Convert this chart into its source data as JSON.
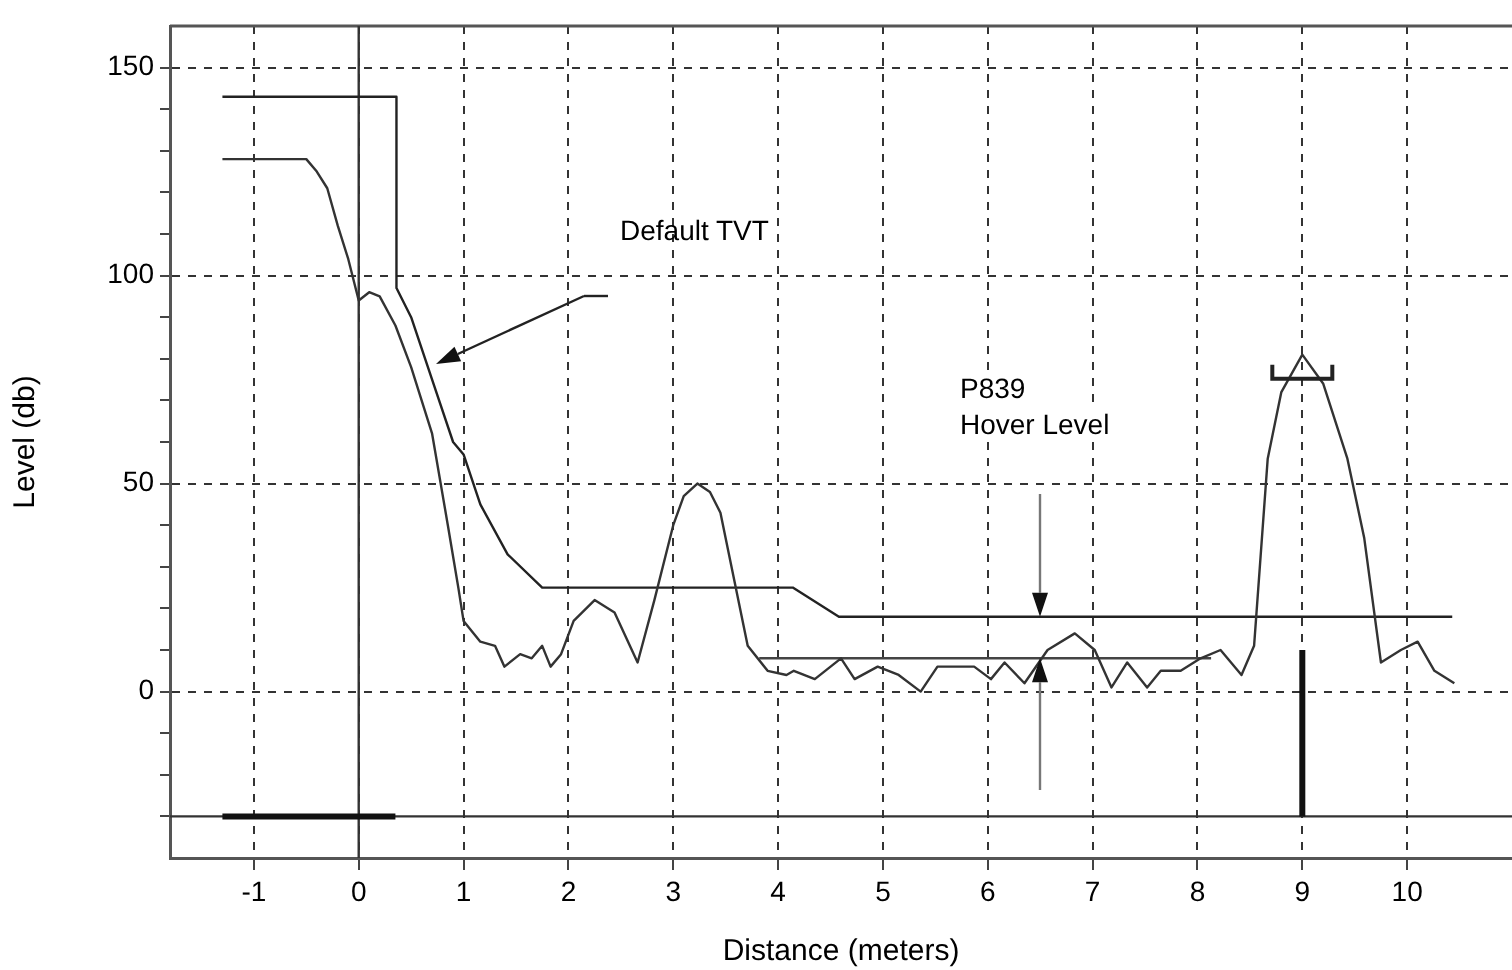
{
  "chart_data": {
    "type": "line",
    "xlabel": "Distance (meters)",
    "ylabel": "Level (db)",
    "xlim": [
      -1.8,
      11
    ],
    "ylim": [
      -40,
      160
    ],
    "xticks": [
      -1,
      0,
      1,
      2,
      3,
      4,
      5,
      6,
      7,
      8,
      9,
      10
    ],
    "yticks": [
      {
        "value": -30,
        "label": null
      },
      {
        "value": -20,
        "label": null
      },
      {
        "value": -10,
        "label": null
      },
      0,
      {
        "value": 10,
        "label": null
      },
      {
        "value": 20,
        "label": null
      },
      {
        "value": 30,
        "label": null
      },
      {
        "value": 40,
        "label": null
      },
      50,
      {
        "value": 60,
        "label": null
      },
      {
        "value": 70,
        "label": null
      },
      {
        "value": 80,
        "label": null
      },
      {
        "value": 90,
        "label": null
      },
      100,
      {
        "value": 110,
        "label": null
      },
      {
        "value": 120,
        "label": null
      },
      {
        "value": 130,
        "label": null
      },
      {
        "value": 140,
        "label": null
      },
      150
    ],
    "grid": true,
    "legend": false,
    "marker": "none",
    "line_style": "solid",
    "series": [
      {
        "color": "#333333",
        "x": [
          -1.3,
          -0.5,
          -0.4,
          -0.3,
          -0.2,
          -0.1,
          0,
          0.1,
          0.2,
          0.35,
          0.5,
          0.7,
          0.85,
          0.95,
          1.0,
          1.16,
          1.3,
          1.39,
          1.54,
          1.65,
          1.75,
          1.83,
          1.93,
          2.05,
          2.25,
          2.44,
          2.66,
          2.82,
          3.0,
          3.1,
          3.23,
          3.35,
          3.45,
          3.58,
          3.71,
          3.9,
          4.08,
          4.15,
          4.35,
          4.6,
          4.73,
          4.95,
          5.15,
          5.36,
          5.52,
          5.87,
          6.03,
          6.16,
          6.35,
          6.57,
          6.83,
          7.02,
          7.18,
          7.33,
          7.52,
          7.65,
          7.84,
          8.03,
          8.22,
          8.42,
          8.54,
          8.67,
          8.8,
          9.0,
          9.2,
          9.43,
          9.59,
          9.75,
          9.94,
          10.1,
          10.26,
          10.45
        ],
        "values": [
          128,
          128,
          125,
          121,
          112,
          104,
          94,
          96,
          95,
          88,
          78,
          62,
          40,
          25,
          17,
          12,
          11,
          6,
          9,
          8,
          11,
          6,
          9,
          17,
          22,
          19,
          7,
          22,
          40,
          47,
          50,
          48,
          43,
          27,
          11,
          5,
          4,
          5,
          3,
          8,
          3,
          6,
          4,
          0,
          6,
          6,
          3,
          7,
          2,
          10,
          14,
          10,
          1,
          7,
          1,
          5,
          5,
          8,
          10,
          4,
          11,
          56,
          72,
          81,
          74,
          56,
          37,
          7,
          10,
          12,
          5,
          2
        ]
      },
      {
        "color": "#222222",
        "x": [
          -1.3,
          0.36,
          0.36,
          0.5,
          0.7,
          0.9,
          1.0,
          1.16,
          1.42,
          1.75,
          4.14,
          4.58,
          10.43
        ],
        "values": [
          143,
          143,
          97,
          90,
          75,
          60,
          57,
          45,
          33,
          25,
          25,
          18,
          18
        ]
      },
      {
        "color": "#444444",
        "x": [
          3.82,
          8.13
        ],
        "values": [
          8,
          8
        ]
      },
      {
        "color": "#111111",
        "x": [
          -1.3,
          0.35
        ],
        "values": [
          -30,
          -30
        ]
      },
      {
        "color": "#111111",
        "x": [
          9,
          9
        ],
        "values": [
          -30,
          10
        ]
      }
    ],
    "ref_lines": [
      {
        "axis": "x",
        "value": 0,
        "color": "#333333"
      },
      {
        "axis": "y",
        "value": -30,
        "color": "#333333"
      }
    ],
    "annotations": [
      "Default TVT",
      "P839\nHover Level"
    ]
  }
}
